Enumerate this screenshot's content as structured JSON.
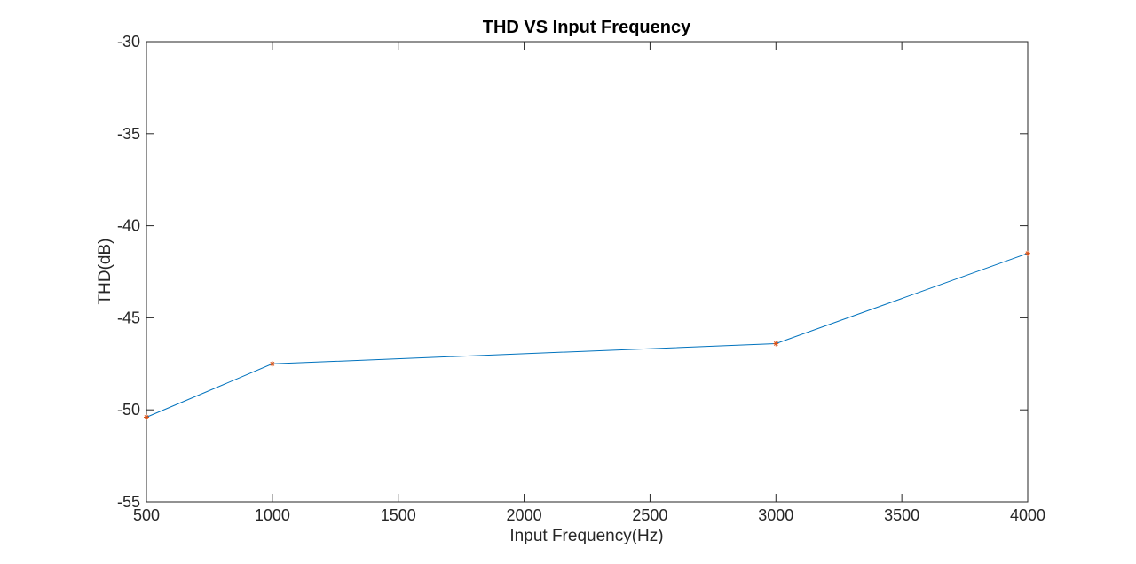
{
  "chart_data": {
    "type": "line",
    "title": "THD VS Input Frequency",
    "xlabel": "Input Frequency(Hz)",
    "ylabel": "THD(dB)",
    "xlim": [
      500,
      4000
    ],
    "ylim": [
      -55,
      -30
    ],
    "xticks": [
      500,
      1000,
      1500,
      2000,
      2500,
      3000,
      3500,
      4000
    ],
    "yticks": [
      -30,
      -35,
      -40,
      -45,
      -50,
      -55
    ],
    "grid": false,
    "legend": "none",
    "series": [
      {
        "x": [
          500,
          1000,
          3000,
          4000
        ],
        "y": [
          -50.4,
          -47.5,
          -46.4,
          -41.5
        ],
        "line_color": "#0072BD",
        "marker": "*",
        "marker_color": "#D95319"
      }
    ]
  }
}
